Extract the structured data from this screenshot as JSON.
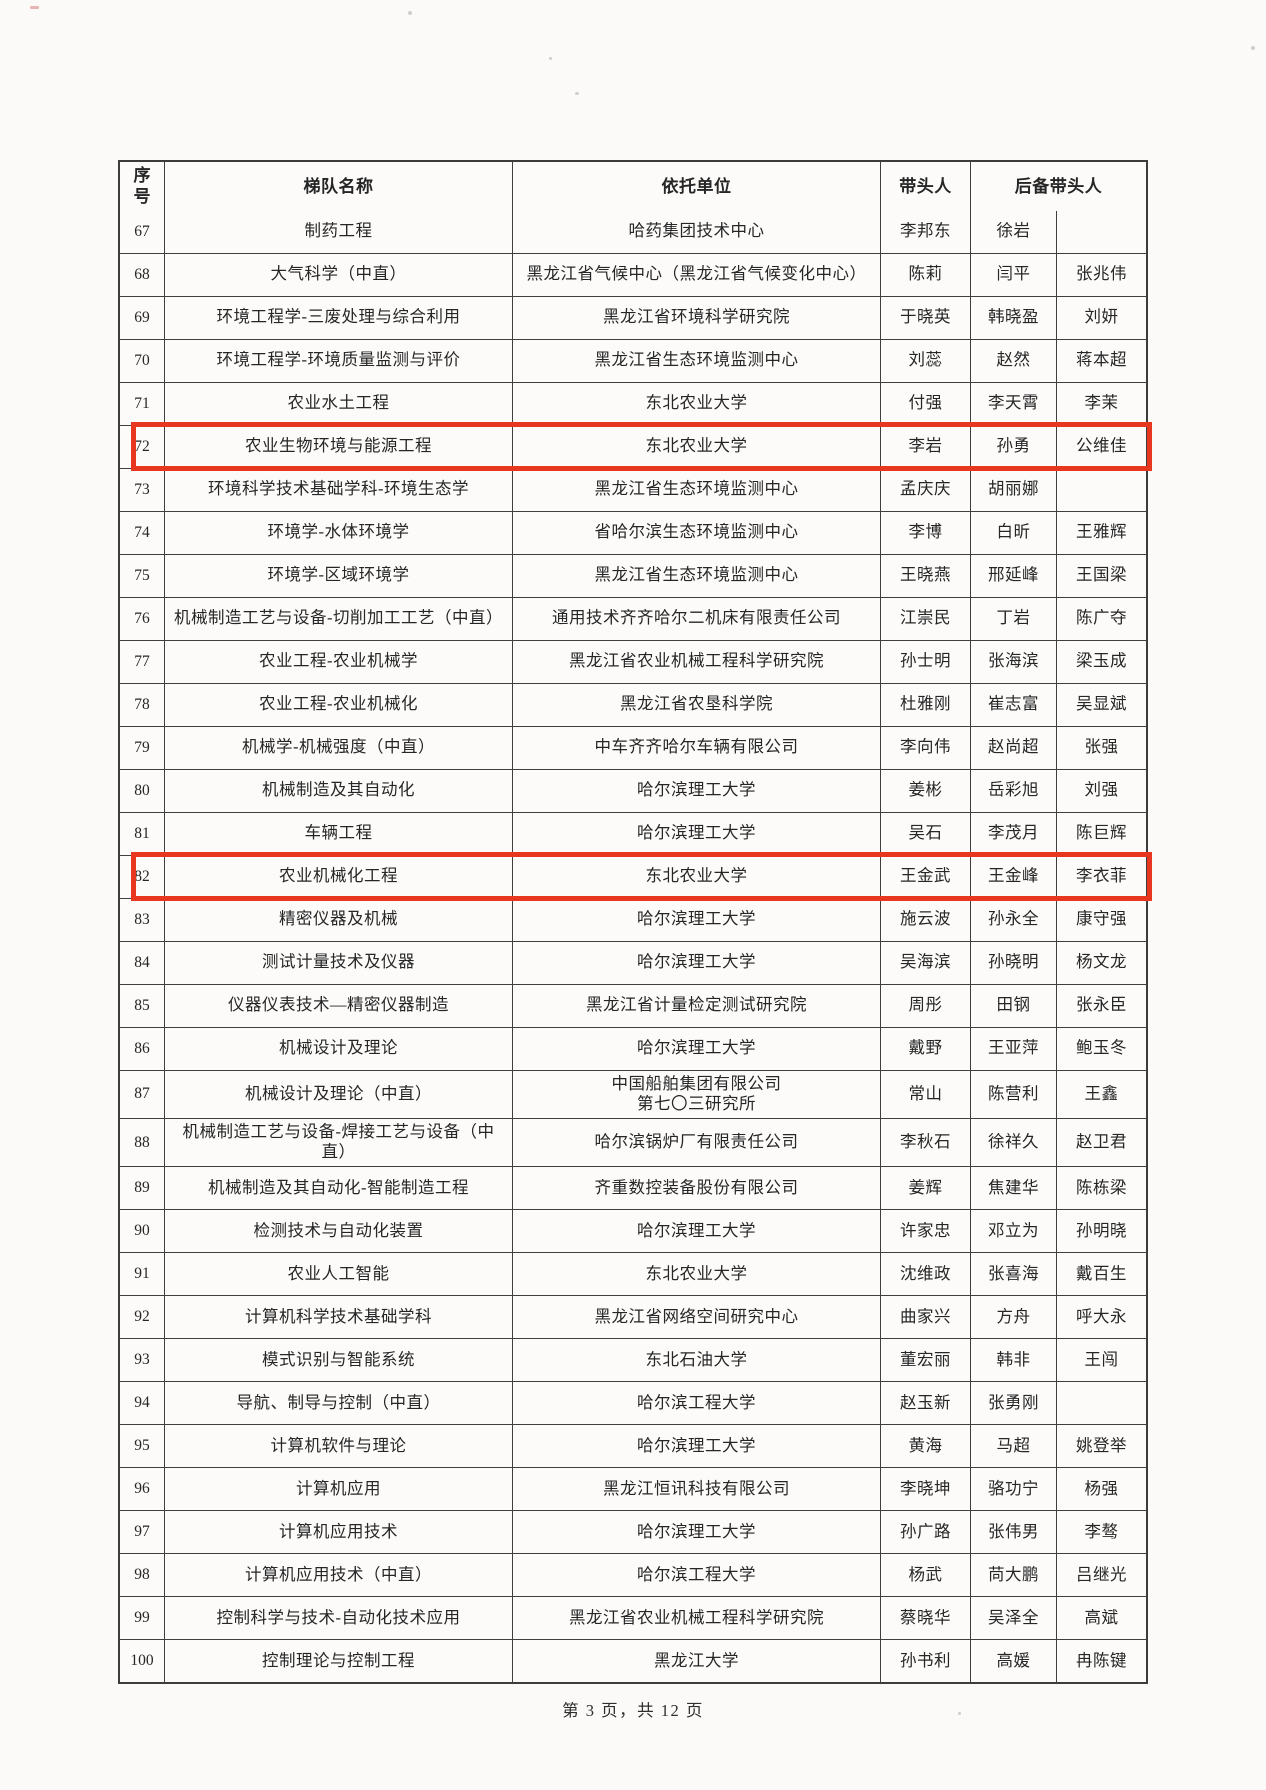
{
  "table": {
    "headers": [
      "序号",
      "梯队名称",
      "依托单位",
      "带头人",
      "后备带头人"
    ],
    "rows": [
      {
        "no": "67",
        "name": "制药工程",
        "unit": "哈药集团技术中心",
        "leader": "李邦东",
        "backup1": "徐岩",
        "backup2": "",
        "highlight": false
      },
      {
        "no": "68",
        "name": "大气科学（中直）",
        "unit": "黑龙江省气候中心（黑龙江省气候变化中心）",
        "leader": "陈莉",
        "backup1": "闫平",
        "backup2": "张兆伟",
        "highlight": false
      },
      {
        "no": "69",
        "name": "环境工程学-三废处理与综合利用",
        "unit": "黑龙江省环境科学研究院",
        "leader": "于晓英",
        "backup1": "韩晓盈",
        "backup2": "刘妍",
        "highlight": false
      },
      {
        "no": "70",
        "name": "环境工程学-环境质量监测与评价",
        "unit": "黑龙江省生态环境监测中心",
        "leader": "刘蕊",
        "backup1": "赵然",
        "backup2": "蒋本超",
        "highlight": false
      },
      {
        "no": "71",
        "name": "农业水土工程",
        "unit": "东北农业大学",
        "leader": "付强",
        "backup1": "李天霄",
        "backup2": "李茉",
        "highlight": false
      },
      {
        "no": "72",
        "name": "农业生物环境与能源工程",
        "unit": "东北农业大学",
        "leader": "李岩",
        "backup1": "孙勇",
        "backup2": "公维佳",
        "highlight": true
      },
      {
        "no": "73",
        "name": "环境科学技术基础学科-环境生态学",
        "unit": "黑龙江省生态环境监测中心",
        "leader": "孟庆庆",
        "backup1": "胡丽娜",
        "backup2": "",
        "highlight": false
      },
      {
        "no": "74",
        "name": "环境学-水体环境学",
        "unit": "省哈尔滨生态环境监测中心",
        "leader": "李博",
        "backup1": "白昕",
        "backup2": "王雅辉",
        "highlight": false
      },
      {
        "no": "75",
        "name": "环境学-区域环境学",
        "unit": "黑龙江省生态环境监测中心",
        "leader": "王晓燕",
        "backup1": "邢延峰",
        "backup2": "王国梁",
        "highlight": false
      },
      {
        "no": "76",
        "name": "机械制造工艺与设备-切削加工工艺（中直）",
        "unit": "通用技术齐齐哈尔二机床有限责任公司",
        "leader": "江崇民",
        "backup1": "丁岩",
        "backup2": "陈广夺",
        "highlight": false
      },
      {
        "no": "77",
        "name": "农业工程-农业机械学",
        "unit": "黑龙江省农业机械工程科学研究院",
        "leader": "孙士明",
        "backup1": "张海滨",
        "backup2": "梁玉成",
        "highlight": false
      },
      {
        "no": "78",
        "name": "农业工程-农业机械化",
        "unit": "黑龙江省农垦科学院",
        "leader": "杜雅刚",
        "backup1": "崔志富",
        "backup2": "吴显斌",
        "highlight": false
      },
      {
        "no": "79",
        "name": "机械学-机械强度（中直）",
        "unit": "中车齐齐哈尔车辆有限公司",
        "leader": "李向伟",
        "backup1": "赵尚超",
        "backup2": "张强",
        "highlight": false
      },
      {
        "no": "80",
        "name": "机械制造及其自动化",
        "unit": "哈尔滨理工大学",
        "leader": "姜彬",
        "backup1": "岳彩旭",
        "backup2": "刘强",
        "highlight": false
      },
      {
        "no": "81",
        "name": "车辆工程",
        "unit": "哈尔滨理工大学",
        "leader": "吴石",
        "backup1": "李茂月",
        "backup2": "陈巨辉",
        "highlight": false
      },
      {
        "no": "82",
        "name": "农业机械化工程",
        "unit": "东北农业大学",
        "leader": "王金武",
        "backup1": "王金峰",
        "backup2": "李衣菲",
        "highlight": true
      },
      {
        "no": "83",
        "name": "精密仪器及机械",
        "unit": "哈尔滨理工大学",
        "leader": "施云波",
        "backup1": "孙永全",
        "backup2": "康守强",
        "highlight": false
      },
      {
        "no": "84",
        "name": "测试计量技术及仪器",
        "unit": "哈尔滨理工大学",
        "leader": "吴海滨",
        "backup1": "孙晓明",
        "backup2": "杨文龙",
        "highlight": false
      },
      {
        "no": "85",
        "name": "仪器仪表技术—精密仪器制造",
        "unit": "黑龙江省计量检定测试研究院",
        "leader": "周彤",
        "backup1": "田钢",
        "backup2": "张永臣",
        "highlight": false
      },
      {
        "no": "86",
        "name": "机械设计及理论",
        "unit": "哈尔滨理工大学",
        "leader": "戴野",
        "backup1": "王亚萍",
        "backup2": "鲍玉冬",
        "highlight": false
      },
      {
        "no": "87",
        "name": "机械设计及理论（中直）",
        "unit": "中国船舶集团有限公司\n第七〇三研究所",
        "leader": "常山",
        "backup1": "陈营利",
        "backup2": "王鑫",
        "highlight": false
      },
      {
        "no": "88",
        "name": "机械制造工艺与设备-焊接工艺与设备（中直）",
        "unit": "哈尔滨锅炉厂有限责任公司",
        "leader": "李秋石",
        "backup1": "徐祥久",
        "backup2": "赵卫君",
        "highlight": false
      },
      {
        "no": "89",
        "name": "机械制造及其自动化-智能制造工程",
        "unit": "齐重数控装备股份有限公司",
        "leader": "姜辉",
        "backup1": "焦建华",
        "backup2": "陈栋梁",
        "highlight": false
      },
      {
        "no": "90",
        "name": "检测技术与自动化装置",
        "unit": "哈尔滨理工大学",
        "leader": "许家忠",
        "backup1": "邓立为",
        "backup2": "孙明晓",
        "highlight": false
      },
      {
        "no": "91",
        "name": "农业人工智能",
        "unit": "东北农业大学",
        "leader": "沈维政",
        "backup1": "张喜海",
        "backup2": "戴百生",
        "highlight": false
      },
      {
        "no": "92",
        "name": "计算机科学技术基础学科",
        "unit": "黑龙江省网络空间研究中心",
        "leader": "曲家兴",
        "backup1": "方舟",
        "backup2": "呼大永",
        "highlight": false
      },
      {
        "no": "93",
        "name": "模式识别与智能系统",
        "unit": "东北石油大学",
        "leader": "董宏丽",
        "backup1": "韩非",
        "backup2": "王闯",
        "highlight": false
      },
      {
        "no": "94",
        "name": "导航、制导与控制（中直）",
        "unit": "哈尔滨工程大学",
        "leader": "赵玉新",
        "backup1": "张勇刚",
        "backup2": "",
        "highlight": false
      },
      {
        "no": "95",
        "name": "计算机软件与理论",
        "unit": "哈尔滨理工大学",
        "leader": "黄海",
        "backup1": "马超",
        "backup2": "姚登举",
        "highlight": false
      },
      {
        "no": "96",
        "name": "计算机应用",
        "unit": "黑龙江恒讯科技有限公司",
        "leader": "李晓坤",
        "backup1": "骆功宁",
        "backup2": "杨强",
        "highlight": false
      },
      {
        "no": "97",
        "name": "计算机应用技术",
        "unit": "哈尔滨理工大学",
        "leader": "孙广路",
        "backup1": "张伟男",
        "backup2": "李骜",
        "highlight": false
      },
      {
        "no": "98",
        "name": "计算机应用技术（中直）",
        "unit": "哈尔滨工程大学",
        "leader": "杨武",
        "backup1": "苘大鹏",
        "backup2": "吕继光",
        "highlight": false
      },
      {
        "no": "99",
        "name": "控制科学与技术-自动化技术应用",
        "unit": "黑龙江省农业机械工程科学研究院",
        "leader": "蔡晓华",
        "backup1": "吴泽全",
        "backup2": "高斌",
        "highlight": false
      },
      {
        "no": "100",
        "name": "控制理论与控制工程",
        "unit": "黑龙江大学",
        "leader": "孙书利",
        "backup1": "高媛",
        "backup2": "冉陈键",
        "highlight": false
      }
    ]
  },
  "footer": {
    "page_indicator": "第 3 页，共 12 页"
  },
  "colors": {
    "highlight_box": "#e8371f",
    "table_border": "#3f3f3f",
    "text": "#262626",
    "paper": "#fbfaf8"
  }
}
